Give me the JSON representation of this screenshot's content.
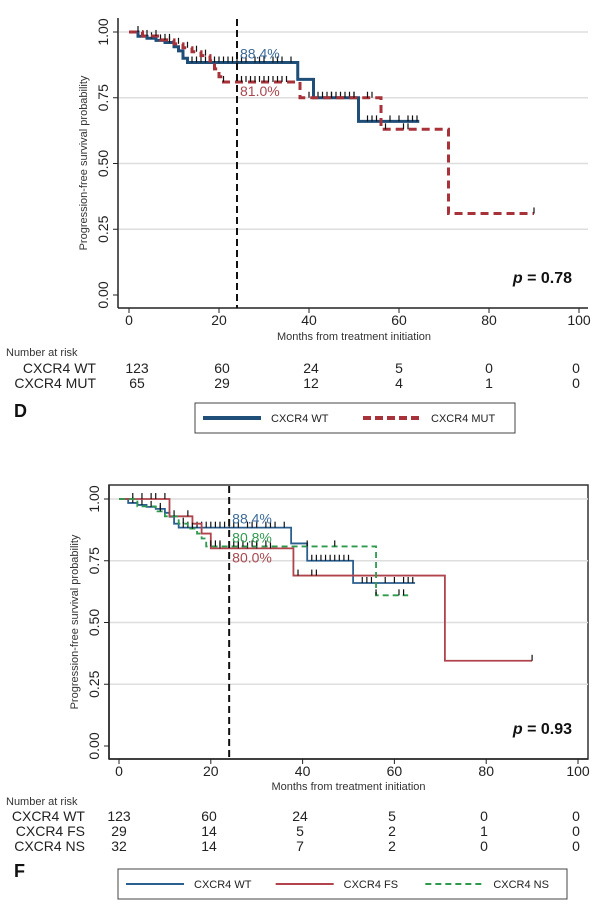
{
  "chart_data": [
    {
      "panel": "D",
      "type": "line",
      "subtype": "kaplan-meier",
      "title": "",
      "xlabel": "Months from treatment initiation",
      "ylabel": "Progression-free survival probability",
      "xlim": [
        0,
        100
      ],
      "ylim": [
        0,
        1
      ],
      "xticks": [
        0,
        20,
        40,
        60,
        80,
        100
      ],
      "yticks": [
        "0.00",
        "0.25",
        "0.50",
        "0.75",
        "1.00"
      ],
      "grid": true,
      "vline_x": 24,
      "p_value_label": "p",
      "p_value_text": " = 0.78",
      "annotations": [
        {
          "text": "88.4%",
          "x": 24,
          "y": 0.884,
          "color": "#3a6a9a",
          "offset": "above"
        },
        {
          "text": "81.0%",
          "x": 24,
          "y": 0.81,
          "color": "#a8474f",
          "offset": "below"
        }
      ],
      "series": [
        {
          "name": "CXCR4 WT",
          "color": "#1f4e79",
          "style": "solid-thick",
          "steps": [
            [
              0,
              1.0
            ],
            [
              2,
              0.984
            ],
            [
              4,
              0.976
            ],
            [
              6,
              0.968
            ],
            [
              8,
              0.96
            ],
            [
              10,
              0.944
            ],
            [
              11,
              0.928
            ],
            [
              12,
              0.9
            ],
            [
              13,
              0.884
            ],
            [
              37.5,
              0.82
            ],
            [
              41,
              0.75
            ],
            [
              51,
              0.66
            ],
            [
              64.5,
              0.66
            ]
          ],
          "censor": [
            3,
            5,
            7,
            9,
            14,
            15,
            16,
            17,
            18,
            19,
            20,
            21,
            22,
            23,
            24,
            25,
            26,
            28,
            29,
            30,
            32,
            33,
            34,
            36,
            42,
            43,
            44,
            45,
            46,
            47,
            48,
            49,
            50,
            53,
            54,
            55,
            58,
            60,
            62,
            63,
            64
          ]
        },
        {
          "name": "CXCR4 MUT",
          "color": "#a8323a",
          "style": "dashed-thick",
          "steps": [
            [
              0,
              1.0
            ],
            [
              3,
              0.985
            ],
            [
              7,
              0.97
            ],
            [
              10,
              0.955
            ],
            [
              12,
              0.94
            ],
            [
              14,
              0.925
            ],
            [
              16,
              0.91
            ],
            [
              18,
              0.89
            ],
            [
              19,
              0.86
            ],
            [
              20,
              0.83
            ],
            [
              21,
              0.81
            ],
            [
              38,
              0.75
            ],
            [
              56,
              0.63
            ],
            [
              71,
              0.31
            ],
            [
              90,
              0.31
            ]
          ],
          "censor": [
            2,
            4,
            6,
            8,
            9,
            11,
            13,
            15,
            17,
            21,
            25,
            26,
            27,
            28,
            29,
            30,
            31,
            32,
            33,
            34,
            35,
            40,
            45,
            50,
            53,
            54,
            57,
            61,
            62,
            90
          ]
        }
      ],
      "risk_table": {
        "header": "Number at risk",
        "columns": [
          0,
          20,
          40,
          60,
          80,
          100
        ],
        "rows": [
          {
            "label": "CXCR4 WT",
            "values": [
              "123",
              "60",
              "24",
              "5",
              "0",
              "0"
            ]
          },
          {
            "label": "CXCR4 MUT",
            "values": [
              "65",
              "29",
              "12",
              "4",
              "1",
              "0"
            ]
          }
        ]
      },
      "legend": {
        "placement": "bottom-center",
        "entries": [
          "CXCR4 WT",
          "CXCR4 MUT"
        ]
      }
    },
    {
      "panel": "F",
      "type": "line",
      "subtype": "kaplan-meier",
      "title": "",
      "xlabel": "Months from treatment initiation",
      "ylabel": "Progression-free survival probability",
      "xlim": [
        0,
        100
      ],
      "ylim": [
        0,
        1
      ],
      "xticks": [
        0,
        20,
        40,
        60,
        80,
        100
      ],
      "yticks": [
        "0.00",
        "0.25",
        "0.50",
        "0.75",
        "1.00"
      ],
      "grid": true,
      "vline_x": 24,
      "p_value_label": "p",
      "p_value_text": " = 0.93",
      "annotations": [
        {
          "text": "88.4%",
          "x": 24,
          "y": 0.884,
          "color": "#3a6a9a",
          "offset": "above"
        },
        {
          "text": "80.8%",
          "x": 24,
          "y": 0.808,
          "color": "#2e9a4e",
          "offset": "above"
        },
        {
          "text": "80.0%",
          "x": 24,
          "y": 0.8,
          "color": "#a8474f",
          "offset": "below"
        }
      ],
      "series": [
        {
          "name": "CXCR4 WT",
          "color": "#2a5f8f",
          "style": "solid",
          "steps": [
            [
              0,
              1.0
            ],
            [
              2,
              0.984
            ],
            [
              4,
              0.976
            ],
            [
              6,
              0.968
            ],
            [
              8,
              0.96
            ],
            [
              10,
              0.944
            ],
            [
              11,
              0.928
            ],
            [
              12,
              0.9
            ],
            [
              13,
              0.884
            ],
            [
              37.5,
              0.82
            ],
            [
              41,
              0.75
            ],
            [
              51,
              0.66
            ],
            [
              64.5,
              0.66
            ]
          ],
          "censor": [
            3,
            5,
            7,
            9,
            14,
            15,
            16,
            17,
            18,
            19,
            20,
            21,
            22,
            23,
            24,
            25,
            26,
            28,
            29,
            30,
            32,
            33,
            34,
            36,
            42,
            43,
            44,
            45,
            46,
            47,
            48,
            49,
            50,
            53,
            54,
            55,
            58,
            60,
            62,
            63,
            64
          ]
        },
        {
          "name": "CXCR4 FS",
          "color": "#b0434b",
          "style": "solid",
          "steps": [
            [
              0,
              1.0
            ],
            [
              11,
              0.93
            ],
            [
              16,
              0.9
            ],
            [
              18,
              0.86
            ],
            [
              20,
              0.8
            ],
            [
              38,
              0.69
            ],
            [
              71,
              0.345
            ],
            [
              90,
              0.345
            ]
          ],
          "censor": [
            3,
            5,
            7,
            8,
            10,
            15,
            22,
            26,
            28,
            30,
            33,
            39,
            42,
            43,
            90
          ]
        },
        {
          "name": "CXCR4 NS",
          "color": "#2e9a4e",
          "style": "dashed",
          "steps": [
            [
              0,
              1.0
            ],
            [
              4,
              0.97
            ],
            [
              8,
              0.95
            ],
            [
              10,
              0.93
            ],
            [
              13,
              0.9
            ],
            [
              15,
              0.88
            ],
            [
              17,
              0.86
            ],
            [
              18,
              0.84
            ],
            [
              19,
              0.808
            ],
            [
              56,
              0.61
            ],
            [
              63,
              0.61
            ]
          ],
          "censor": [
            9,
            12,
            14,
            16,
            20,
            21,
            22,
            25,
            26,
            27,
            29,
            30,
            32,
            41,
            47,
            56,
            61,
            62
          ]
        }
      ],
      "risk_table": {
        "header": "Number at risk",
        "columns": [
          0,
          20,
          40,
          60,
          80,
          100
        ],
        "rows": [
          {
            "label": "CXCR4 WT",
            "values": [
              "123",
              "60",
              "24",
              "5",
              "0",
              "0"
            ]
          },
          {
            "label": "CXCR4 FS",
            "values": [
              "29",
              "14",
              "5",
              "2",
              "1",
              "0"
            ]
          },
          {
            "label": "CXCR4 NS",
            "values": [
              "32",
              "14",
              "7",
              "2",
              "0",
              "0"
            ]
          }
        ]
      },
      "legend": {
        "placement": "bottom-center",
        "entries": [
          "CXCR4 WT",
          "CXCR4 FS",
          "CXCR4 NS"
        ]
      }
    }
  ]
}
